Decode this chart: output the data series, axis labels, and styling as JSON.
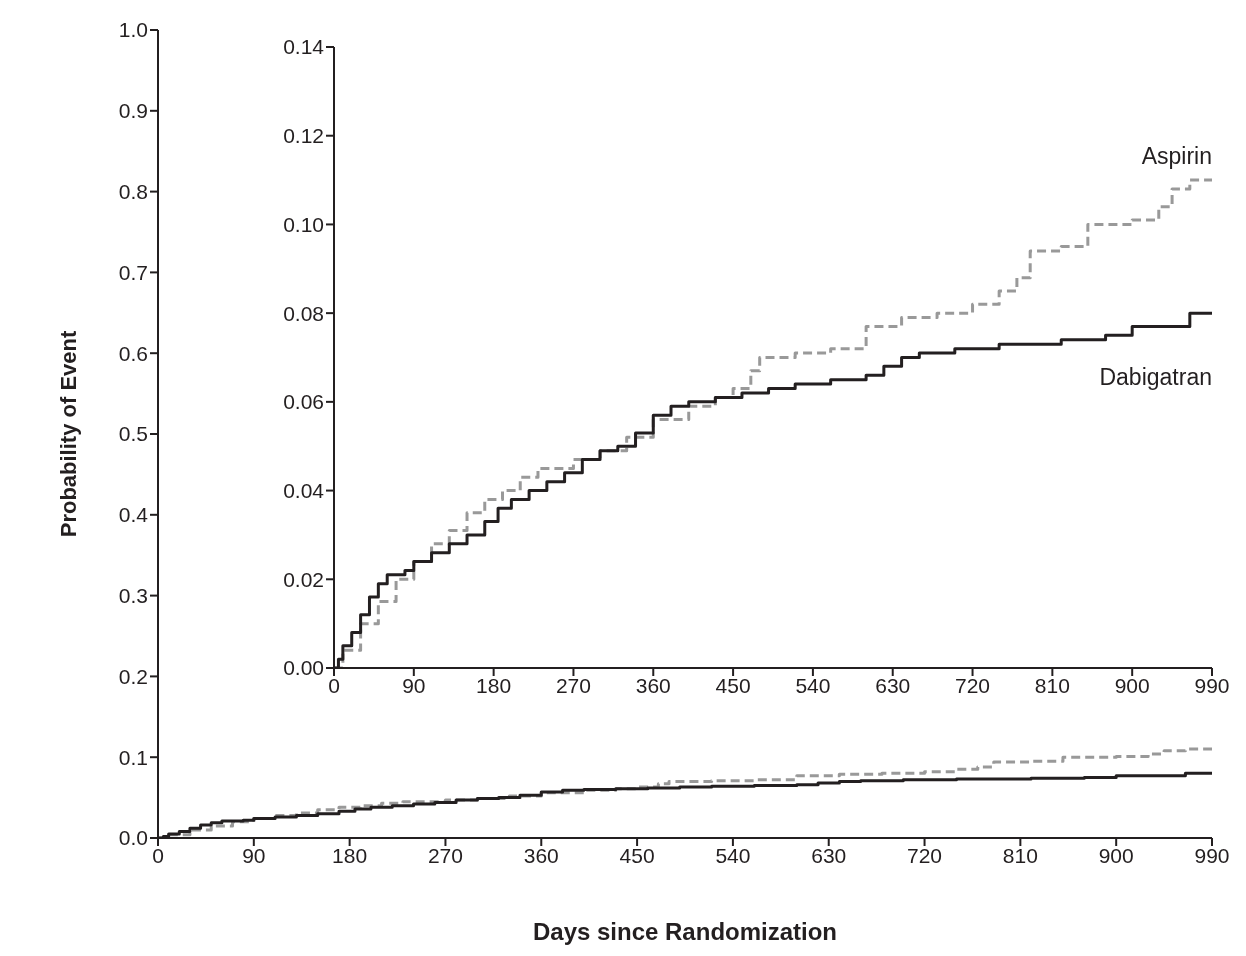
{
  "chart_data": [
    {
      "type": "step",
      "xlabel": "Days since Randomization",
      "ylabel": "Probability of Event",
      "xlim": [
        0,
        990
      ],
      "ylim": [
        0,
        1
      ],
      "xticks": [
        0,
        90,
        180,
        270,
        360,
        450,
        540,
        630,
        720,
        810,
        900,
        990
      ],
      "yticks": [
        {
          "value": 0,
          "label": "0.0"
        },
        0.1,
        0.2,
        0.3,
        0.4,
        0.5,
        0.6,
        0.7,
        0.8,
        0.9,
        {
          "value": 1,
          "label": "1.0"
        }
      ],
      "grid": false,
      "legend": false,
      "marker": "none",
      "series": [
        {
          "color": "#999999",
          "line_style": "dashed",
          "x": [
            0,
            10,
            30,
            50,
            70,
            90,
            110,
            130,
            150,
            170,
            190,
            210,
            230,
            260,
            270,
            300,
            330,
            360,
            400,
            430,
            450,
            470,
            480,
            520,
            560,
            600,
            640,
            680,
            720,
            750,
            770,
            785,
            820,
            850,
            900,
            930,
            945,
            965,
            990
          ],
          "values": [
            0,
            0.004,
            0.01,
            0.015,
            0.02,
            0.024,
            0.028,
            0.031,
            0.035,
            0.038,
            0.04,
            0.043,
            0.045,
            0.045,
            0.047,
            0.049,
            0.052,
            0.056,
            0.059,
            0.061,
            0.063,
            0.067,
            0.07,
            0.071,
            0.072,
            0.077,
            0.079,
            0.08,
            0.082,
            0.085,
            0.088,
            0.094,
            0.095,
            0.1,
            0.101,
            0.104,
            0.108,
            0.11,
            0.11
          ]
        },
        {
          "color": "#231f20",
          "line_style": "solid",
          "x": [
            0,
            5,
            10,
            20,
            30,
            40,
            50,
            60,
            80,
            90,
            110,
            130,
            150,
            170,
            185,
            200,
            220,
            240,
            260,
            280,
            300,
            320,
            340,
            360,
            380,
            400,
            430,
            460,
            490,
            520,
            560,
            600,
            620,
            640,
            660,
            700,
            750,
            820,
            870,
            900,
            960,
            965,
            990
          ],
          "values": [
            0,
            0.002,
            0.005,
            0.008,
            0.012,
            0.016,
            0.019,
            0.021,
            0.022,
            0.024,
            0.026,
            0.028,
            0.03,
            0.033,
            0.036,
            0.038,
            0.04,
            0.042,
            0.044,
            0.047,
            0.049,
            0.05,
            0.053,
            0.057,
            0.059,
            0.06,
            0.061,
            0.062,
            0.063,
            0.064,
            0.065,
            0.066,
            0.068,
            0.07,
            0.071,
            0.072,
            0.073,
            0.074,
            0.075,
            0.077,
            0.077,
            0.08,
            0.08
          ]
        }
      ]
    },
    {
      "type": "step",
      "xlim": [
        0,
        990
      ],
      "ylim": [
        0,
        0.14
      ],
      "xticks": [
        0,
        90,
        180,
        270,
        360,
        450,
        540,
        630,
        720,
        810,
        900,
        990
      ],
      "yticks": [
        {
          "value": 0,
          "label": "0.00"
        },
        {
          "value": 0.02,
          "label": "0.02"
        },
        {
          "value": 0.04,
          "label": "0.04"
        },
        {
          "value": 0.06,
          "label": "0.06"
        },
        {
          "value": 0.08,
          "label": "0.08"
        },
        {
          "value": 0.1,
          "label": "0.10"
        },
        {
          "value": 0.12,
          "label": "0.12"
        },
        {
          "value": 0.14,
          "label": "0.14"
        }
      ],
      "grid": false,
      "legend": false,
      "marker": "none",
      "series": [
        {
          "name": "Aspirin",
          "color": "#999999",
          "line_style": "dashed",
          "x": [
            0,
            10,
            30,
            50,
            70,
            90,
            110,
            130,
            150,
            170,
            190,
            210,
            230,
            260,
            270,
            300,
            330,
            360,
            400,
            430,
            450,
            470,
            480,
            520,
            560,
            600,
            640,
            680,
            720,
            750,
            770,
            785,
            820,
            850,
            900,
            930,
            945,
            965,
            990
          ],
          "values": [
            0,
            0.004,
            0.01,
            0.015,
            0.02,
            0.024,
            0.028,
            0.031,
            0.035,
            0.038,
            0.04,
            0.043,
            0.045,
            0.045,
            0.047,
            0.049,
            0.052,
            0.056,
            0.059,
            0.061,
            0.063,
            0.067,
            0.07,
            0.071,
            0.072,
            0.077,
            0.079,
            0.08,
            0.082,
            0.085,
            0.088,
            0.094,
            0.095,
            0.1,
            0.101,
            0.104,
            0.108,
            0.11,
            0.11
          ]
        },
        {
          "name": "Dabigatran",
          "color": "#231f20",
          "line_style": "solid",
          "x": [
            0,
            5,
            10,
            20,
            30,
            40,
            50,
            60,
            80,
            90,
            110,
            130,
            150,
            170,
            185,
            200,
            220,
            240,
            260,
            280,
            300,
            320,
            340,
            360,
            380,
            400,
            430,
            460,
            490,
            520,
            560,
            600,
            620,
            640,
            660,
            700,
            750,
            820,
            870,
            900,
            960,
            965,
            990
          ],
          "values": [
            0,
            0.002,
            0.005,
            0.008,
            0.012,
            0.016,
            0.019,
            0.021,
            0.022,
            0.024,
            0.026,
            0.028,
            0.03,
            0.033,
            0.036,
            0.038,
            0.04,
            0.042,
            0.044,
            0.047,
            0.049,
            0.05,
            0.053,
            0.057,
            0.059,
            0.06,
            0.061,
            0.062,
            0.063,
            0.064,
            0.065,
            0.066,
            0.068,
            0.07,
            0.071,
            0.072,
            0.073,
            0.074,
            0.075,
            0.077,
            0.077,
            0.08,
            0.08
          ]
        }
      ]
    }
  ]
}
